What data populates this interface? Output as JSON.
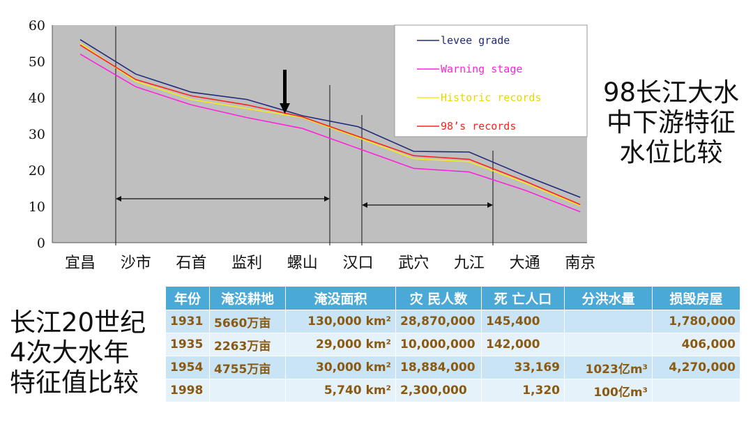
{
  "chart_data": {
    "type": "line",
    "categories": [
      "宜昌",
      "沙市",
      "石首",
      "监利",
      "螺山",
      "汉口",
      "武穴",
      "九江",
      "大通",
      "南京"
    ],
    "ylim": [
      0,
      60
    ],
    "y_ticks": [
      0,
      10,
      20,
      30,
      40,
      50,
      60
    ],
    "grid": false,
    "legend_position": "top-right",
    "series": [
      {
        "name": "levee grade",
        "color": "#1f2a7a",
        "values": [
          56,
          46.5,
          41.5,
          39.5,
          35,
          32,
          25.2,
          25,
          18.5,
          12.5
        ]
      },
      {
        "name": "Warning stage",
        "color": "#ff22dd",
        "values": [
          52,
          43,
          38,
          34.5,
          31.5,
          26,
          20.5,
          19.5,
          14.5,
          8.5
        ]
      },
      {
        "name": "Historic records",
        "color": "#f2ea1a",
        "values": [
          55,
          44.5,
          39.5,
          37,
          34.5,
          29,
          23.2,
          22.3,
          16.5,
          10.2
        ]
      },
      {
        "name": "98's records",
        "color": "#ff2020",
        "values": [
          54.5,
          45,
          40.5,
          38,
          34.7,
          29.3,
          24,
          23,
          17,
          10.5
        ]
      }
    ],
    "legend_labels": [
      "levee grade",
      "Warning stage",
      "Historic records",
      "98’s records"
    ]
  },
  "title_right": [
    "98长江大水",
    "中下游特征",
    "水位比较"
  ],
  "title_left": [
    "长江20世纪",
    "4次大水年",
    "特征值比较"
  ],
  "table": {
    "headers": [
      "年份",
      "淹没耕地",
      "淹没面积",
      "灾 民人数",
      "死 亡人口",
      "分洪水量",
      "损毁房屋"
    ],
    "rows": [
      [
        "1931",
        "5660万亩",
        "130,000 km²",
        "28,870,000",
        "145,400",
        "",
        "1,780,000"
      ],
      [
        "1935",
        "2263万亩",
        "29,000 km²",
        "10,000,000",
        "142,000",
        "",
        "406,000"
      ],
      [
        "1954",
        "4755万亩",
        "30,000 km²",
        "18,884,000",
        "33,169",
        "1023亿m³",
        "4,270,000"
      ],
      [
        "1998",
        "",
        "5,740 km²",
        "2,300,000",
        "1,320",
        "100亿m³",
        ""
      ]
    ]
  }
}
